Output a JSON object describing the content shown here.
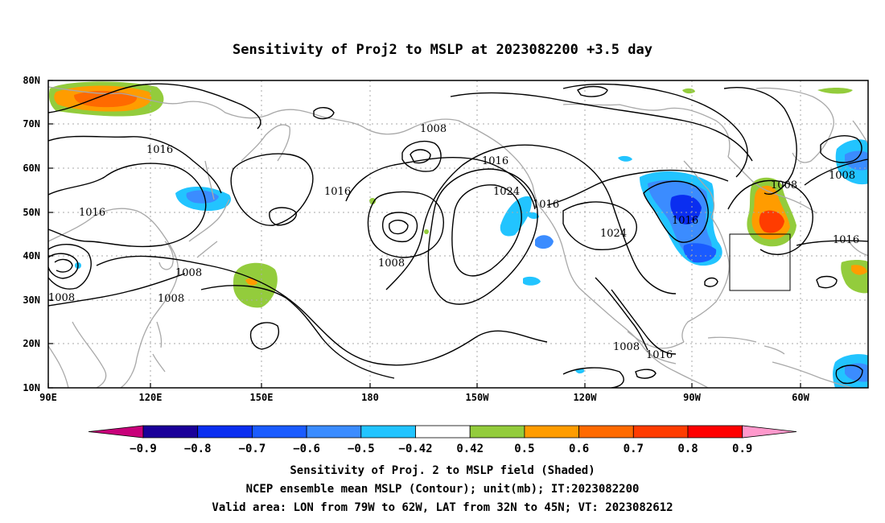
{
  "title": "Sensitivity of Proj2 to MSLP at 2023082200 +3.5 day",
  "lat_labels": [
    "80N",
    "70N",
    "60N",
    "50N",
    "40N",
    "30N",
    "20N",
    "10N"
  ],
  "lon_labels": [
    "90E",
    "120E",
    "150E",
    "180",
    "150W",
    "120W",
    "90W",
    "60W"
  ],
  "contour_labels": [
    {
      "text": "1008"
    },
    {
      "text": "1016"
    },
    {
      "text": "1016"
    },
    {
      "text": "1008"
    },
    {
      "text": "1008"
    },
    {
      "text": "1008"
    },
    {
      "text": "1008"
    },
    {
      "text": "1008"
    },
    {
      "text": "1016"
    },
    {
      "text": "1024"
    },
    {
      "text": "1016"
    },
    {
      "text": "1024"
    },
    {
      "text": "1016"
    },
    {
      "text": "1008"
    },
    {
      "text": "1016"
    },
    {
      "text": "1008"
    },
    {
      "text": "1016"
    },
    {
      "text": "1016"
    }
  ],
  "colorbar": {
    "labels": [
      "−0.9",
      "−0.8",
      "−0.7",
      "−0.6",
      "−0.5",
      "−0.42",
      "0.42",
      "0.5",
      "0.6",
      "0.7",
      "0.8",
      "0.9"
    ],
    "colors": [
      "#1a0099",
      "#0a2ef0",
      "#1a5bff",
      "#3b8cff",
      "#22c4ff",
      "#ffffff",
      "#93cc3c",
      "#ff9c00",
      "#ff6a00",
      "#ff3c00",
      "#ff0000"
    ],
    "low_cap": "#c8007a",
    "high_cap": "#ff99cc"
  },
  "footer": {
    "line1": "Sensitivity of Proj. 2 to MSLP field (Shaded)",
    "line2": "NCEP ensemble mean MSLP (Contour); unit(mb); IT:2023082200",
    "line3": "Valid area: LON from 79W to 62W, LAT from 32N to 45N; VT: 2023082612"
  },
  "map": {
    "lon_range": [
      "90E",
      "40W"
    ],
    "lat_range": [
      "10N",
      "80N"
    ],
    "valid_box": {
      "lon_min": "79W",
      "lon_max": "62W",
      "lat_min": "32N",
      "lat_max": "45N"
    }
  }
}
